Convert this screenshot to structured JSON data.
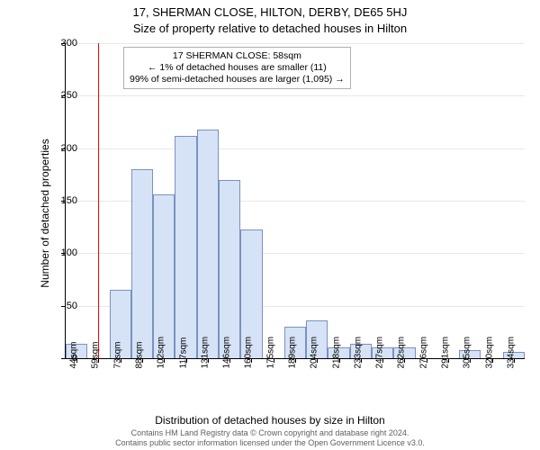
{
  "titles": {
    "line1": "17, SHERMAN CLOSE, HILTON, DERBY, DE65 5HJ",
    "line2": "Size of property relative to detached houses in Hilton"
  },
  "axes": {
    "ylabel": "Number of detached properties",
    "xlabel": "Distribution of detached houses by size in Hilton"
  },
  "footer": {
    "line1": "Contains HM Land Registry data © Crown copyright and database right 2024.",
    "line2": "Contains public sector information licensed under the Open Government Licence v3.0."
  },
  "chart": {
    "type": "histogram",
    "ylim": [
      0,
      300
    ],
    "ytick_step": 50,
    "x_start": 44,
    "x_bin_width_sqm": 14.5,
    "x_tick_suffix": "sqm",
    "n_xticks": 21,
    "bar_fill": "#d6e2f6",
    "bar_stroke": "#7a92c0",
    "grid_color": "#e8e8e8",
    "background": "#ffffff",
    "values": [
      14,
      0,
      65,
      180,
      156,
      212,
      218,
      170,
      123,
      0,
      30,
      36,
      10,
      14,
      10,
      10,
      0,
      0,
      8,
      0,
      6
    ],
    "marker": {
      "value_sqm": 58,
      "color": "#ff0000"
    },
    "annotation": {
      "line1": "17 SHERMAN CLOSE: 58sqm",
      "line2": "← 1% of detached houses are smaller (11)",
      "line3": "99% of semi-detached houses are larger (1,095) →"
    }
  }
}
